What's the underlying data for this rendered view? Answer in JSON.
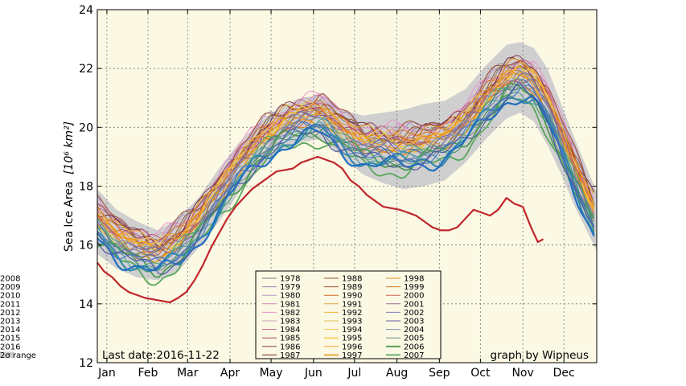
{
  "chart_data": {
    "type": "line",
    "title": "",
    "ylabel": "Sea Ice Area",
    "ylabel_unit": "[10⁶ km²]",
    "ylim": [
      12,
      24
    ],
    "yticks": [
      "12",
      "14",
      "16",
      "18",
      "20",
      "22",
      "24"
    ],
    "xlim": [
      1,
      366
    ],
    "months": [
      {
        "label": "Jan",
        "day": 8
      },
      {
        "label": "Feb",
        "day": 38
      },
      {
        "label": "Mar",
        "day": 67
      },
      {
        "label": "Apr",
        "day": 98
      },
      {
        "label": "May",
        "day": 128
      },
      {
        "label": "Jun",
        "day": 159
      },
      {
        "label": "Jul",
        "day": 189
      },
      {
        "label": "Aug",
        "day": 220
      },
      {
        "label": "Sep",
        "day": 251
      },
      {
        "label": "Oct",
        "day": 281
      },
      {
        "label": "Nov",
        "day": 312
      },
      {
        "label": "Dec",
        "day": 342
      }
    ],
    "grid": true,
    "legend_position": "bottom-center",
    "last_date_note": "Last date:2016-11-22",
    "credit": "graph by Wipneus",
    "band": {
      "name": "2σ range",
      "color": "#cfcfcf",
      "x": [
        1,
        15,
        30,
        45,
        60,
        75,
        90,
        105,
        120,
        135,
        150,
        165,
        180,
        195,
        210,
        225,
        240,
        255,
        270,
        285,
        300,
        310,
        320,
        330,
        340,
        350,
        366
      ],
      "upper": [
        17.9,
        17.2,
        16.8,
        16.5,
        16.9,
        17.6,
        18.6,
        19.5,
        20.2,
        20.7,
        21.0,
        21.1,
        20.6,
        20.4,
        20.5,
        20.6,
        20.8,
        20.9,
        21.3,
        22.1,
        22.8,
        22.9,
        22.7,
        22.0,
        20.8,
        19.6,
        17.8
      ],
      "lower": [
        15.7,
        15.2,
        14.9,
        14.8,
        15.1,
        15.9,
        16.8,
        17.8,
        18.6,
        19.2,
        19.5,
        19.6,
        19.0,
        18.4,
        18.1,
        17.9,
        18.0,
        18.2,
        18.8,
        19.6,
        20.3,
        20.5,
        20.2,
        19.4,
        18.4,
        17.3,
        15.8
      ]
    },
    "series": [
      {
        "name": "1978",
        "color": "#7a7a7a",
        "width": 1.0,
        "offset": 0.35,
        "wave": 0.22,
        "phase": 0.0
      },
      {
        "name": "1979",
        "color": "#9c7fb4",
        "width": 1.0,
        "offset": 0.55,
        "wave": 0.25,
        "phase": 0.6
      },
      {
        "name": "1980",
        "color": "#b899c9",
        "width": 1.0,
        "offset": 0.6,
        "wave": 0.2,
        "phase": 1.2
      },
      {
        "name": "1981",
        "color": "#d67fb8",
        "width": 1.0,
        "offset": 0.5,
        "wave": 0.24,
        "phase": 1.8
      },
      {
        "name": "1982",
        "color": "#e991c7",
        "width": 1.0,
        "offset": 0.65,
        "wave": 0.22,
        "phase": 2.4
      },
      {
        "name": "1983",
        "color": "#c9a0b8",
        "width": 1.0,
        "offset": 0.45,
        "wave": 0.2,
        "phase": 3.0
      },
      {
        "name": "1984",
        "color": "#c25c88",
        "width": 1.0,
        "offset": 0.4,
        "wave": 0.23,
        "phase": 3.6
      },
      {
        "name": "1985",
        "color": "#a0455e",
        "width": 1.0,
        "offset": 0.3,
        "wave": 0.21,
        "phase": 4.2
      },
      {
        "name": "1986",
        "color": "#8b3f52",
        "width": 1.0,
        "offset": 0.5,
        "wave": 0.2,
        "phase": 4.8
      },
      {
        "name": "1987",
        "color": "#6f2b35",
        "width": 1.0,
        "offset": 0.45,
        "wave": 0.24,
        "phase": 5.4
      },
      {
        "name": "1988",
        "color": "#8b5a2b",
        "width": 1.0,
        "offset": 0.4,
        "wave": 0.22,
        "phase": 0.3
      },
      {
        "name": "1989",
        "color": "#a0522d",
        "width": 1.0,
        "offset": 0.6,
        "wave": 0.25,
        "phase": 0.9
      },
      {
        "name": "1990",
        "color": "#d2691e",
        "width": 1.0,
        "offset": 0.35,
        "wave": 0.2,
        "phase": 1.5
      },
      {
        "name": "1991",
        "color": "#e8a33c",
        "width": 1.0,
        "offset": 0.2,
        "wave": 0.23,
        "phase": 2.1
      },
      {
        "name": "1992",
        "color": "#f0b53a",
        "width": 1.0,
        "offset": 0.3,
        "wave": 0.22,
        "phase": 2.7
      },
      {
        "name": "1993",
        "color": "#e0c050",
        "width": 1.0,
        "offset": 0.15,
        "wave": 0.21,
        "phase": 3.3
      },
      {
        "name": "1994",
        "color": "#f2c54b",
        "width": 1.0,
        "offset": 0.25,
        "wave": 0.24,
        "phase": 3.9
      },
      {
        "name": "1995",
        "color": "#ffb000",
        "width": 1.0,
        "offset": 0.1,
        "wave": 0.2,
        "phase": 4.5
      },
      {
        "name": "1996",
        "color": "#f5a623",
        "width": 1.0,
        "offset": 0.4,
        "wave": 0.22,
        "phase": 5.1
      },
      {
        "name": "1997",
        "color": "#e89b1a",
        "width": 1.6,
        "offset": 0.05,
        "wave": 0.23,
        "phase": 5.7
      },
      {
        "name": "1998",
        "color": "#e8902a",
        "width": 1.0,
        "offset": 0.2,
        "wave": 0.21,
        "phase": 0.5
      },
      {
        "name": "1999",
        "color": "#d9771c",
        "width": 1.0,
        "offset": 0.0,
        "wave": 0.22,
        "phase": 1.1
      },
      {
        "name": "2000",
        "color": "#c8644a",
        "width": 1.0,
        "offset": 0.05,
        "wave": 0.24,
        "phase": 1.7
      },
      {
        "name": "2001",
        "color": "#9e6b8f",
        "width": 1.0,
        "offset": 0.1,
        "wave": 0.2,
        "phase": 2.3
      },
      {
        "name": "2002",
        "color": "#7e7fb3",
        "width": 1.0,
        "offset": -0.1,
        "wave": 0.23,
        "phase": 2.9
      },
      {
        "name": "2003",
        "color": "#6a5fa6",
        "width": 1.0,
        "offset": 0.0,
        "wave": 0.21,
        "phase": 3.5
      },
      {
        "name": "2004",
        "color": "#7891b0",
        "width": 1.0,
        "offset": -0.05,
        "wave": 0.22,
        "phase": 4.1
      },
      {
        "name": "2005",
        "color": "#6b9080",
        "width": 1.0,
        "offset": -0.3,
        "wave": 0.2,
        "phase": 4.7
      },
      {
        "name": "2006",
        "color": "#4f9a4f",
        "width": 1.8,
        "offset": -0.45,
        "wave": 0.24,
        "phase": 5.3
      },
      {
        "name": "2007",
        "color": "#58a85c",
        "width": 1.8,
        "offset": -0.75,
        "wave": 0.22,
        "phase": 5.9
      },
      {
        "name": "2008",
        "color": "#3d8f5a",
        "width": 1.0,
        "offset": -0.35,
        "wave": 0.21,
        "phase": 0.2
      },
      {
        "name": "2009",
        "color": "#4aa382",
        "width": 1.0,
        "offset": -0.2,
        "wave": 0.23,
        "phase": 0.8
      },
      {
        "name": "2010",
        "color": "#3c9b9b",
        "width": 1.0,
        "offset": -0.4,
        "wave": 0.22,
        "phase": 1.4
      },
      {
        "name": "2011",
        "color": "#2e86ab",
        "width": 2.0,
        "offset": -0.5,
        "wave": 0.24,
        "phase": 2.0
      },
      {
        "name": "2012",
        "color": "#1f6fbf",
        "width": 2.2,
        "offset": -0.6,
        "wave": 0.23,
        "phase": 2.6
      },
      {
        "name": "2013",
        "color": "#4b78c8",
        "width": 1.2,
        "offset": -0.35,
        "wave": 0.2,
        "phase": 3.2
      },
      {
        "name": "2014",
        "color": "#5470a8",
        "width": 1.2,
        "offset": -0.3,
        "wave": 0.22,
        "phase": 3.8
      },
      {
        "name": "2015",
        "color": "#4a5a9e",
        "width": 1.2,
        "offset": -0.5,
        "wave": 0.21,
        "phase": 4.4
      },
      {
        "name": "2016",
        "color": "#c0262d",
        "width": 2.2,
        "x": [
          1,
          6,
          12,
          18,
          24,
          30,
          36,
          42,
          48,
          54,
          60,
          66,
          72,
          78,
          84,
          90,
          96,
          102,
          108,
          114,
          120,
          126,
          132,
          138,
          144,
          150,
          156,
          162,
          168,
          174,
          180,
          186,
          192,
          198,
          204,
          210,
          216,
          222,
          228,
          234,
          240,
          246,
          252,
          258,
          264,
          270,
          276,
          282,
          288,
          294,
          300,
          306,
          312,
          318,
          323,
          327
        ],
        "y": [
          15.4,
          15.1,
          14.9,
          14.6,
          14.4,
          14.3,
          14.2,
          14.15,
          14.1,
          14.05,
          14.2,
          14.4,
          14.8,
          15.3,
          15.9,
          16.4,
          16.9,
          17.3,
          17.6,
          17.9,
          18.1,
          18.3,
          18.5,
          18.55,
          18.6,
          18.8,
          18.9,
          19.0,
          18.9,
          18.8,
          18.6,
          18.2,
          18.0,
          17.7,
          17.5,
          17.3,
          17.25,
          17.2,
          17.1,
          17.0,
          16.8,
          16.6,
          16.5,
          16.5,
          16.6,
          16.9,
          17.2,
          17.1,
          17.0,
          17.2,
          17.6,
          17.4,
          17.3,
          16.6,
          16.1,
          16.2
        ]
      }
    ],
    "baseline": {
      "x": [
        1,
        15,
        30,
        45,
        60,
        75,
        90,
        105,
        120,
        135,
        150,
        165,
        180,
        195,
        210,
        225,
        240,
        255,
        270,
        285,
        300,
        310,
        320,
        330,
        340,
        350,
        366
      ],
      "y": [
        16.8,
        16.2,
        15.85,
        15.6,
        16.0,
        16.75,
        17.7,
        18.65,
        19.4,
        19.95,
        20.25,
        20.35,
        19.8,
        19.4,
        19.3,
        19.25,
        19.4,
        19.55,
        20.05,
        20.85,
        21.55,
        21.7,
        21.45,
        20.7,
        19.6,
        18.45,
        16.8
      ]
    }
  }
}
